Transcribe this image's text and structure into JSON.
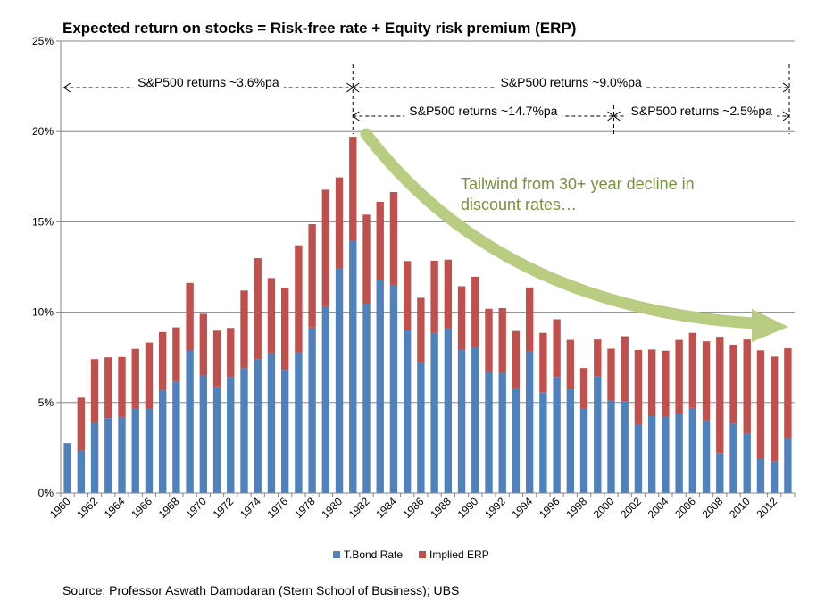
{
  "chart_data": {
    "type": "bar",
    "stacked": true,
    "title": "Expected return on stocks = Risk-free rate + Equity risk premium (ERP)",
    "x": [
      1960,
      1961,
      1962,
      1963,
      1964,
      1965,
      1966,
      1967,
      1968,
      1969,
      1970,
      1971,
      1972,
      1973,
      1974,
      1975,
      1976,
      1977,
      1978,
      1979,
      1980,
      1981,
      1982,
      1983,
      1984,
      1985,
      1986,
      1987,
      1988,
      1989,
      1990,
      1991,
      1992,
      1993,
      1994,
      1995,
      1996,
      1997,
      1998,
      1999,
      2000,
      2001,
      2002,
      2003,
      2004,
      2005,
      2006,
      2007,
      2008,
      2009,
      2010,
      2011,
      2012,
      2013
    ],
    "x_tick_labels": [
      "1960",
      "1962",
      "1964",
      "1966",
      "1968",
      "1970",
      "1972",
      "1974",
      "1976",
      "1978",
      "1980",
      "1982",
      "1984",
      "1986",
      "1988",
      "1990",
      "1992",
      "1994",
      "1996",
      "1998",
      "2000",
      "2002",
      "2004",
      "2006",
      "2008",
      "2010",
      "2012"
    ],
    "series": [
      {
        "name": "T.Bond Rate",
        "color": "#4f81bd",
        "values": [
          2.76,
          2.35,
          3.85,
          4.14,
          4.21,
          4.65,
          4.64,
          5.7,
          6.16,
          7.88,
          6.5,
          5.89,
          6.41,
          6.9,
          7.4,
          7.76,
          6.81,
          7.78,
          9.15,
          10.33,
          12.43,
          13.98,
          10.47,
          11.8,
          11.51,
          8.99,
          7.22,
          8.86,
          9.14,
          7.93,
          8.07,
          6.7,
          6.68,
          5.79,
          7.82,
          5.57,
          6.41,
          5.74,
          4.65,
          6.44,
          5.11,
          5.05,
          3.81,
          4.25,
          4.22,
          4.39,
          4.7,
          4.02,
          2.21,
          3.84,
          3.29,
          1.88,
          1.76,
          3.04
        ]
      },
      {
        "name": "Implied ERP",
        "color": "#c0504d",
        "values": [
          0.0,
          2.92,
          3.55,
          3.36,
          3.31,
          3.32,
          3.68,
          3.2,
          3.0,
          3.74,
          3.41,
          3.09,
          2.72,
          4.3,
          5.59,
          4.13,
          4.55,
          5.92,
          5.72,
          6.45,
          5.03,
          5.73,
          4.93,
          4.31,
          5.14,
          3.84,
          3.58,
          3.99,
          3.77,
          3.51,
          3.89,
          3.49,
          3.55,
          3.17,
          3.55,
          3.29,
          3.2,
          2.73,
          2.26,
          2.05,
          2.87,
          3.62,
          4.1,
          3.69,
          3.65,
          4.08,
          4.16,
          4.37,
          6.43,
          4.36,
          5.2,
          6.01,
          5.78,
          4.96
        ]
      }
    ],
    "ylim": [
      0,
      25
    ],
    "y_ticks": [
      0,
      5,
      10,
      15,
      20,
      25
    ],
    "y_tick_labels": [
      "0%",
      "5%",
      "10%",
      "15%",
      "20%",
      "25%"
    ],
    "legend_position": "bottom",
    "gridlines": true,
    "annotations": {
      "ranges": [
        {
          "label": "S&P500 returns ~3.6%pa",
          "from": 1960,
          "to": 1981
        },
        {
          "label": "S&P500 returns ~9.0%pa",
          "from": 1981,
          "to": 2013
        },
        {
          "label": "S&P500 returns ~14.7%pa",
          "from": 1981,
          "to": 2000
        },
        {
          "label": "S&P500 returns ~2.5%pa",
          "from": 2000,
          "to": 2013
        }
      ],
      "arrow_text_line1": "Tailwind from 30+ year decline in",
      "arrow_text_line2": "discount rates…",
      "arrow_color": "#9bbb59"
    }
  },
  "source": "Source: Professor Aswath Damodaran (Stern School of Business); UBS"
}
